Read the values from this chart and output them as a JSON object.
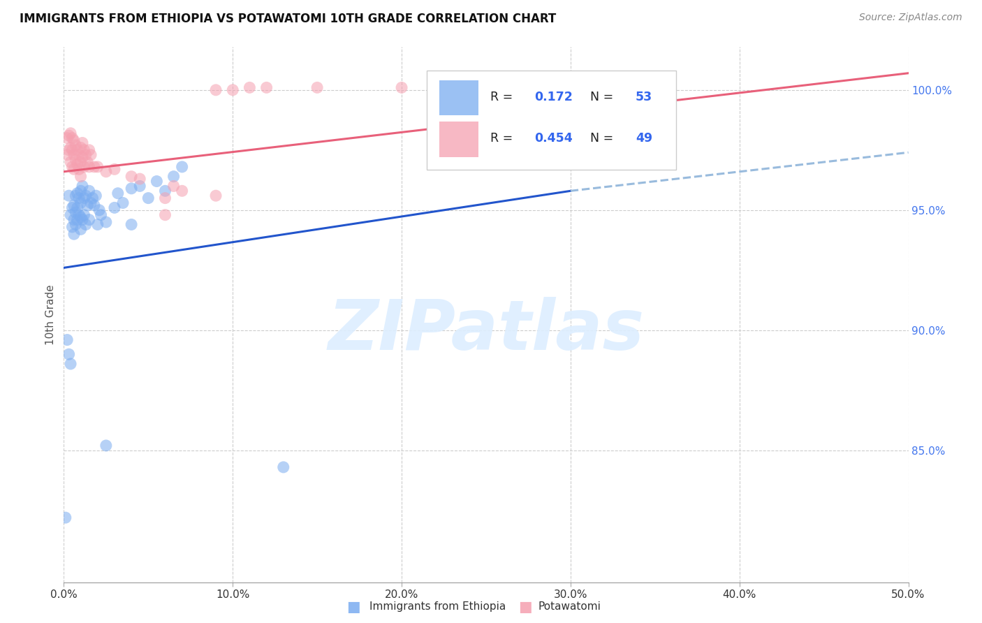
{
  "title": "IMMIGRANTS FROM ETHIOPIA VS POTAWATOMI 10TH GRADE CORRELATION CHART",
  "source": "Source: ZipAtlas.com",
  "ylabel_label": "10th Grade",
  "xlim": [
    0.0,
    0.5
  ],
  "ylim": [
    0.795,
    1.018
  ],
  "xticks": [
    0.0,
    0.1,
    0.2,
    0.3,
    0.4,
    0.5
  ],
  "yticks": [
    0.85,
    0.9,
    0.95,
    1.0
  ],
  "xticklabels": [
    "0.0%",
    "10.0%",
    "20.0%",
    "30.0%",
    "40.0%",
    "50.0%"
  ],
  "yticklabels": [
    "85.0%",
    "90.0%",
    "95.0%",
    "100.0%"
  ],
  "blue_color": "#7aacf0",
  "pink_color": "#f5a0b0",
  "blue_line_color": "#2255cc",
  "pink_line_color": "#e8607a",
  "dashed_line_color": "#99bbdd",
  "watermark_text": "ZIPatlas",
  "blue_line": [
    [
      0.0,
      0.926
    ],
    [
      0.3,
      0.958
    ]
  ],
  "blue_dash_line": [
    [
      0.3,
      0.958
    ],
    [
      0.5,
      0.974
    ]
  ],
  "pink_line": [
    [
      0.0,
      0.966
    ],
    [
      0.5,
      1.007
    ]
  ],
  "blue_scatter_x": [
    0.003,
    0.004,
    0.005,
    0.005,
    0.006,
    0.006,
    0.006,
    0.007,
    0.007,
    0.007,
    0.008,
    0.008,
    0.008,
    0.009,
    0.009,
    0.01,
    0.01,
    0.01,
    0.01,
    0.011,
    0.011,
    0.012,
    0.012,
    0.013,
    0.013,
    0.014,
    0.015,
    0.015,
    0.016,
    0.017,
    0.018,
    0.019,
    0.02,
    0.021,
    0.022,
    0.025,
    0.03,
    0.032,
    0.035,
    0.04,
    0.04,
    0.045,
    0.05,
    0.055,
    0.06,
    0.065,
    0.07,
    0.002,
    0.003,
    0.004,
    0.001,
    0.025,
    0.13
  ],
  "blue_scatter_y": [
    0.956,
    0.948,
    0.951,
    0.943,
    0.952,
    0.946,
    0.94,
    0.956,
    0.949,
    0.944,
    0.957,
    0.951,
    0.946,
    0.955,
    0.948,
    0.958,
    0.953,
    0.947,
    0.942,
    0.96,
    0.946,
    0.955,
    0.948,
    0.956,
    0.944,
    0.952,
    0.958,
    0.946,
    0.953,
    0.955,
    0.952,
    0.956,
    0.944,
    0.95,
    0.948,
    0.945,
    0.951,
    0.957,
    0.953,
    0.959,
    0.944,
    0.96,
    0.955,
    0.962,
    0.958,
    0.964,
    0.968,
    0.896,
    0.89,
    0.886,
    0.822,
    0.852,
    0.843
  ],
  "pink_scatter_x": [
    0.002,
    0.002,
    0.003,
    0.003,
    0.004,
    0.004,
    0.004,
    0.005,
    0.005,
    0.005,
    0.006,
    0.006,
    0.006,
    0.007,
    0.007,
    0.008,
    0.008,
    0.009,
    0.009,
    0.01,
    0.01,
    0.01,
    0.011,
    0.011,
    0.012,
    0.012,
    0.013,
    0.014,
    0.015,
    0.015,
    0.016,
    0.018,
    0.02,
    0.025,
    0.03,
    0.04,
    0.045,
    0.06,
    0.06,
    0.065,
    0.07,
    0.09,
    0.1,
    0.12,
    0.2,
    0.09,
    0.11,
    0.15,
    0.35
  ],
  "pink_scatter_y": [
    0.98,
    0.973,
    0.981,
    0.975,
    0.982,
    0.976,
    0.97,
    0.98,
    0.975,
    0.968,
    0.979,
    0.973,
    0.967,
    0.977,
    0.971,
    0.975,
    0.969,
    0.973,
    0.967,
    0.976,
    0.97,
    0.964,
    0.978,
    0.972,
    0.975,
    0.968,
    0.973,
    0.97,
    0.975,
    0.968,
    0.973,
    0.968,
    0.968,
    0.966,
    0.967,
    0.964,
    0.963,
    0.955,
    0.948,
    0.96,
    0.958,
    0.956,
    1.0,
    1.001,
    1.001,
    1.0,
    1.001,
    1.001,
    1.001
  ]
}
